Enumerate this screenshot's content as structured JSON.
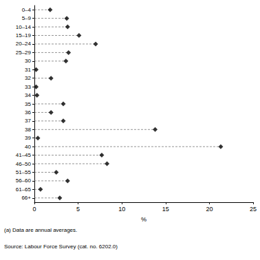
{
  "chart_data": {
    "type": "scatter",
    "orientation": "horizontal",
    "categories": [
      "0–4",
      "5–9",
      "10–14",
      "15–19",
      "20–24",
      "25–29",
      "30",
      "31",
      "32",
      "33",
      "34",
      "35",
      "36",
      "37",
      "38",
      "39",
      "40",
      "41–45",
      "46–50",
      "51–55",
      "56–60",
      "61–65",
      "66+"
    ],
    "values": [
      1.8,
      3.7,
      3.8,
      5.1,
      7.0,
      3.9,
      3.6,
      0.2,
      1.9,
      0.2,
      0.3,
      3.3,
      1.9,
      3.3,
      13.8,
      0.4,
      21.3,
      7.7,
      8.3,
      2.5,
      3.8,
      0.7,
      2.9
    ],
    "color": "#000000",
    "marker": "diamond",
    "line_style": "dashed",
    "xlabel": "%",
    "xlim": [
      0,
      25
    ],
    "xticks": [
      0,
      5,
      10,
      15,
      20,
      25
    ],
    "grid": false,
    "annotations": [
      "(a) Data are annual averages.",
      "Source: Labour Force Survey (cat. no. 6202.0)"
    ]
  }
}
